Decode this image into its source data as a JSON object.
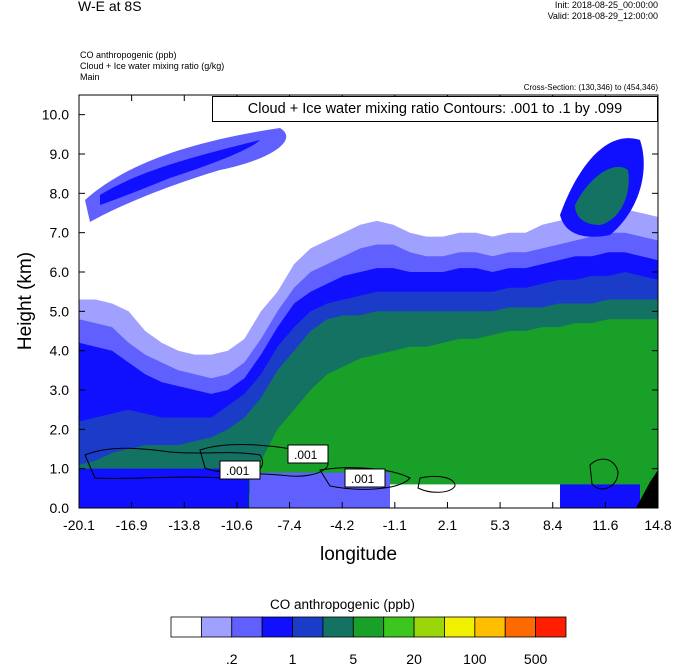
{
  "header": {
    "title": "W-E at 8S",
    "init": "Init: 2018-08-25_00:00:00",
    "valid": "Valid: 2018-08-29_12:00:00",
    "field1": "CO anthropogenic   (ppb)",
    "field2": "Cloud + Ice water mixing ratio   (g/kg)",
    "field3": "Main",
    "cross_section": "Cross-Section: (130,346) to (454,346)",
    "contour_info": "Cloud + Ice water mixing ratio Contours: .001 to .1 by .099"
  },
  "chart_data": {
    "type": "heatmap",
    "xlabel": "longitude",
    "ylabel": "Height (km)",
    "x_ticks": [
      "-20.1",
      "-16.9",
      "-13.8",
      "-10.6",
      "-7.4",
      "-4.2",
      "-1.1",
      "2.1",
      "5.3",
      "8.4",
      "11.6",
      "14.8"
    ],
    "y_ticks": [
      "0.0",
      "1.0",
      "2.0",
      "3.0",
      "4.0",
      "5.0",
      "6.0",
      "7.0",
      "8.0",
      "9.0",
      "10.0"
    ],
    "ylim": [
      0,
      10.5
    ],
    "contour_labels": [
      ".001",
      ".001",
      ".001"
    ],
    "colorbar": {
      "title": "CO anthropogenic  (ppb)",
      "colors": [
        "#ffffff",
        "#a0a0ff",
        "#6060ff",
        "#1010ff",
        "#1a3cc8",
        "#137262",
        "#18a028",
        "#3cc61e",
        "#9bd60a",
        "#f0f000",
        "#ffbe00",
        "#ff6a00",
        "#ff1e00"
      ],
      "labels": [
        ".2",
        "1",
        "5",
        "20",
        "100",
        "500"
      ]
    },
    "bands": [
      {
        "level": "lightblue",
        "color": "#a0a0ff",
        "top": [
          5.3,
          5.3,
          5.2,
          5.0,
          4.5,
          4.2,
          4.0,
          3.9,
          3.9,
          4.0,
          4.3,
          5.0,
          5.5,
          6.2,
          6.6,
          6.8,
          7.0,
          7.2,
          7.3,
          7.2,
          7.0,
          6.9,
          6.9,
          7.0,
          7.0,
          6.9,
          7.0,
          7.0,
          7.2,
          7.3,
          7.4,
          7.4,
          7.5,
          7.6,
          7.5,
          7.4
        ]
      },
      {
        "level": "medblue",
        "color": "#6060ff",
        "top": [
          4.8,
          4.7,
          4.6,
          4.2,
          3.9,
          3.7,
          3.5,
          3.4,
          3.3,
          3.4,
          3.7,
          4.3,
          5.0,
          5.6,
          6.0,
          6.2,
          6.4,
          6.6,
          6.7,
          6.7,
          6.5,
          6.4,
          6.4,
          6.5,
          6.5,
          6.4,
          6.5,
          6.5,
          6.6,
          6.7,
          6.8,
          6.9,
          7.0,
          7.0,
          6.9,
          6.8
        ]
      },
      {
        "level": "blue",
        "color": "#1010ff",
        "top": [
          4.2,
          4.1,
          4.0,
          3.7,
          3.4,
          3.2,
          3.1,
          3.0,
          2.9,
          3.0,
          3.3,
          3.9,
          4.6,
          5.2,
          5.5,
          5.7,
          5.9,
          6.0,
          6.1,
          6.1,
          6.0,
          6.0,
          6.0,
          6.1,
          6.1,
          6.0,
          6.1,
          6.1,
          6.2,
          6.3,
          6.4,
          6.4,
          6.5,
          6.5,
          6.4,
          6.3
        ]
      },
      {
        "level": "darkblue",
        "color": "#1a3cc8",
        "top": [
          2.2,
          2.3,
          2.4,
          2.5,
          2.4,
          2.3,
          2.3,
          2.3,
          2.3,
          2.6,
          2.9,
          3.4,
          4.1,
          4.6,
          5.0,
          5.2,
          5.3,
          5.4,
          5.5,
          5.5,
          5.5,
          5.5,
          5.5,
          5.5,
          5.5,
          5.5,
          5.6,
          5.6,
          5.7,
          5.8,
          5.8,
          5.9,
          5.9,
          6.0,
          5.9,
          5.8
        ]
      },
      {
        "level": "teal",
        "color": "#137262",
        "top": [
          1.1,
          1.2,
          1.4,
          1.5,
          1.6,
          1.6,
          1.6,
          1.7,
          1.8,
          2.0,
          2.3,
          2.8,
          3.5,
          4.0,
          4.5,
          4.8,
          4.9,
          4.9,
          5.0,
          5.0,
          5.0,
          5.0,
          5.0,
          5.0,
          5.0,
          5.0,
          5.1,
          5.1,
          5.1,
          5.2,
          5.2,
          5.2,
          5.3,
          5.3,
          5.3,
          5.3
        ]
      },
      {
        "level": "green",
        "color": "#18a028",
        "top": [
          0.0,
          0.0,
          0.0,
          0.0,
          0.0,
          0.0,
          0.0,
          0.0,
          0.0,
          0.0,
          0.0,
          1.2,
          2.0,
          2.5,
          3.0,
          3.4,
          3.6,
          3.8,
          3.9,
          4.0,
          4.1,
          4.1,
          4.2,
          4.3,
          4.3,
          4.4,
          4.5,
          4.5,
          4.6,
          4.6,
          4.7,
          4.7,
          4.8,
          4.8,
          4.8,
          4.8
        ]
      }
    ]
  }
}
